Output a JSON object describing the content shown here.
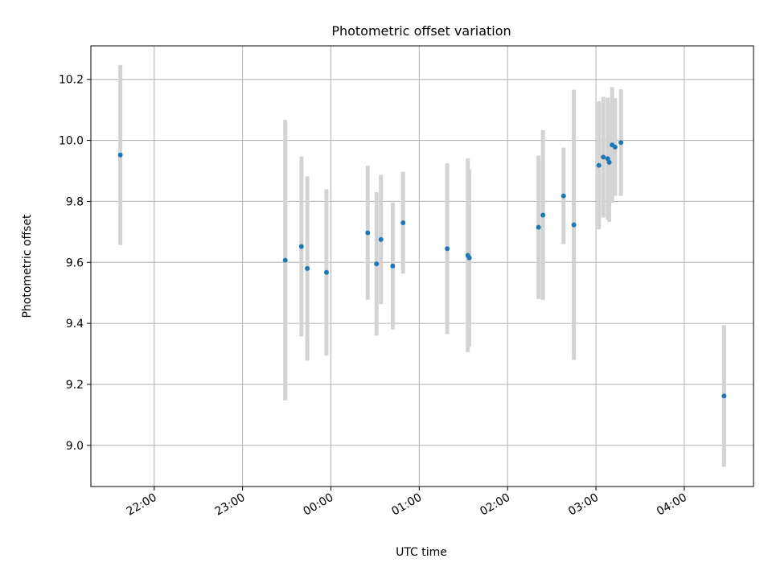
{
  "chart_data": {
    "type": "scatter",
    "title": "Photometric offset variation",
    "xlabel": "UTC time",
    "ylabel": "Photometric offset",
    "xlim": [
      "21:17",
      "04:47"
    ],
    "ylim": [
      8.865,
      10.31
    ],
    "x_ticks": [
      "22:00",
      "23:00",
      "00:00",
      "01:00",
      "02:00",
      "03:00",
      "04:00"
    ],
    "y_ticks": [
      "9.0",
      "9.2",
      "9.4",
      "9.6",
      "9.8",
      "10.0",
      "10.2"
    ],
    "grid": true,
    "legend": "none",
    "marker_color": "#1f77b4",
    "errorbar_color": "#d3d3d3",
    "points": [
      {
        "t": "21:37",
        "y": 9.952,
        "err": 0.295
      },
      {
        "t": "23:29",
        "y": 9.607,
        "err": 0.46
      },
      {
        "t": "23:40",
        "y": 9.652,
        "err": 0.295
      },
      {
        "t": "23:44",
        "y": 9.58,
        "err": 0.302
      },
      {
        "t": "23:57",
        "y": 9.567,
        "err": 0.273
      },
      {
        "t": "00:25",
        "y": 9.697,
        "err": 0.22
      },
      {
        "t": "00:31",
        "y": 9.595,
        "err": 0.235
      },
      {
        "t": "00:34",
        "y": 9.675,
        "err": 0.212
      },
      {
        "t": "00:42",
        "y": 9.588,
        "err": 0.208
      },
      {
        "t": "00:49",
        "y": 9.73,
        "err": 0.167
      },
      {
        "t": "01:19",
        "y": 9.645,
        "err": 0.28
      },
      {
        "t": "01:33",
        "y": 9.623,
        "err": 0.318
      },
      {
        "t": "01:34",
        "y": 9.615,
        "err": 0.29
      },
      {
        "t": "02:21",
        "y": 9.715,
        "err": 0.235
      },
      {
        "t": "02:24",
        "y": 9.755,
        "err": 0.278
      },
      {
        "t": "02:38",
        "y": 9.818,
        "err": 0.158
      },
      {
        "t": "02:45",
        "y": 9.723,
        "err": 0.443
      },
      {
        "t": "03:02",
        "y": 9.918,
        "err": 0.21
      },
      {
        "t": "03:05",
        "y": 9.945,
        "err": 0.198
      },
      {
        "t": "03:08",
        "y": 9.94,
        "err": 0.2
      },
      {
        "t": "03:09",
        "y": 9.928,
        "err": 0.195
      },
      {
        "t": "03:11",
        "y": 9.985,
        "err": 0.19
      },
      {
        "t": "03:13",
        "y": 9.978,
        "err": 0.16
      },
      {
        "t": "03:17",
        "y": 9.993,
        "err": 0.175
      },
      {
        "t": "04:27",
        "y": 9.162,
        "err": 0.232
      }
    ]
  }
}
